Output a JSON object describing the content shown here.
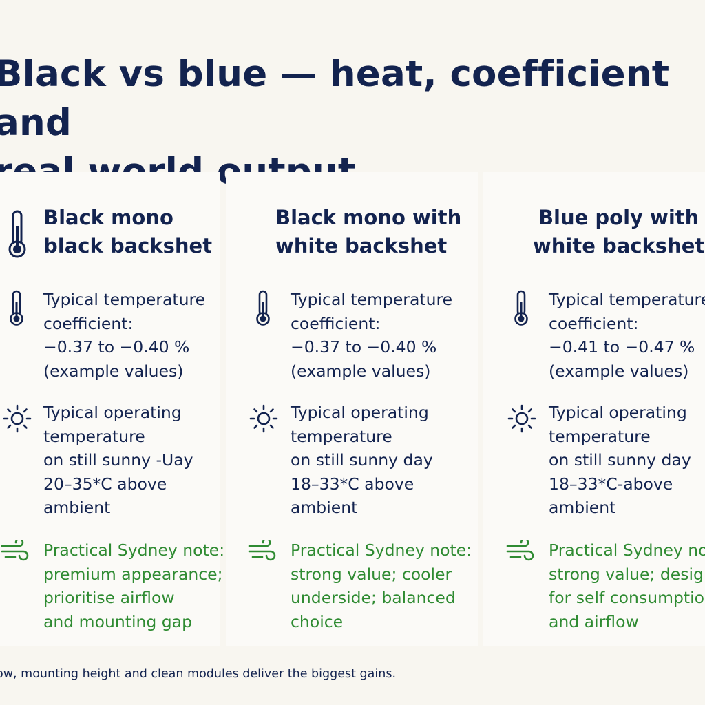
{
  "title": "Black vs blue — heat, coefficient and\nreal world output",
  "columns": [
    {
      "heading": "Black mono\nblack backshet",
      "coefficient": {
        "label_line1": "Typical temperature",
        "label_line2": "coefficient:",
        "value": "−0.37 to −0.40 %",
        "note": "(example values)"
      },
      "operating": {
        "line1": "Typical operating",
        "line2": "temperature",
        "line3": "on still sunny -Uay",
        "line4": "20–35*C above",
        "line5": "ambient"
      },
      "practical": {
        "line1": "Practical Sydney note:",
        "line2": "premium appearance;",
        "line3": "prioritise airflow",
        "line4": "and mounting gap"
      }
    },
    {
      "heading": "Black mono with\nwhite backshet",
      "coefficient": {
        "label_line1": "Typical temperature",
        "label_line2": "coefficient:",
        "value": "−0.37 to −0.40 %",
        "note": "(example values)"
      },
      "operating": {
        "line1": "Typical operating",
        "line2": "temperature",
        "line3": "on still sunny day",
        "line4": "18–33*C above",
        "line5": "ambient"
      },
      "practical": {
        "line1": "Practical Sydney note:",
        "line2": "strong value; cooler",
        "line3": "underside; balanced",
        "line4": "choice"
      }
    },
    {
      "heading": "Blue poly with\nwhite backshet",
      "coefficient": {
        "label_line1": "Typical temperature",
        "label_line2": "coefficient:",
        "value": "−0.41 to −0.47 %",
        "note": "(example values)"
      },
      "operating": {
        "line1": "Typical operating",
        "line2": "temperature",
        "line3": "on still sunny day",
        "line4": "18–33*C-above",
        "line5": "ambient"
      },
      "practical": {
        "line1": "Practical Sydney note:",
        "line2": "strong value; design",
        "line3": "for self consumption",
        "line4": "and airflow"
      }
    }
  ],
  "footer": "ow, mounting height and clean modules deliver the biggest gains.",
  "icons": {
    "thermometer": "thermometer-icon",
    "sun": "sun-icon",
    "wind": "wind-icon"
  },
  "colors": {
    "text": "#13234f",
    "accent_green": "#2f8b32",
    "background": "#f8f6f0",
    "panel": "#fbfaf7"
  }
}
